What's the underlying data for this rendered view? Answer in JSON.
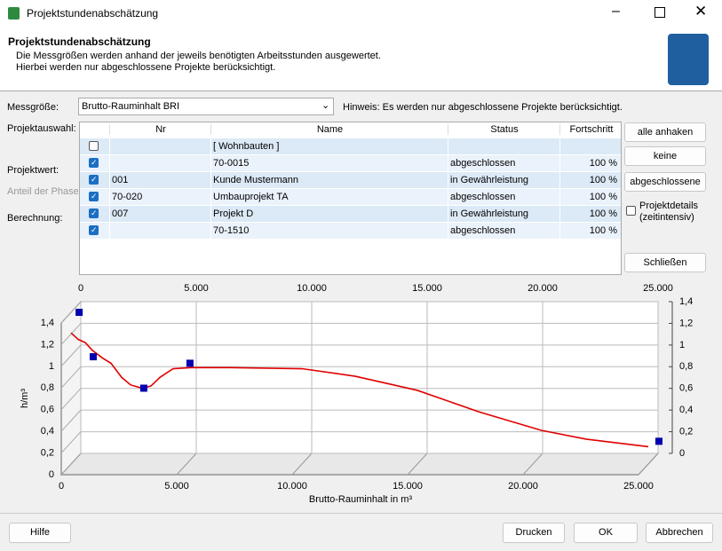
{
  "window": {
    "title": "Projektstundenabschätzung"
  },
  "header": {
    "title": "Projektstundenabschätzung",
    "lines": [
      "Die Messgrößen werden anhand der jeweils benötigten Arbeitsstunden ausgewertet.",
      "Hierbei werden nur abgeschlossene Projekte berücksichtigt."
    ]
  },
  "form": {
    "measure_label": "Messgröße:",
    "measure_value": "Brutto-Rauminhalt BRI",
    "hint": "Hinweis: Es werden nur abgeschlossene Projekte berücksichtigt.",
    "labels": [
      "Projektauswahl:",
      "Projektwert:",
      "Anteil der Phase",
      "Berechnung:"
    ]
  },
  "table": {
    "columns": [
      "Nr",
      "Name",
      "Status",
      "Fortschritt"
    ],
    "rows": [
      {
        "checked": false,
        "cells": [
          null,
          "[ Wohnbauten ]",
          null,
          null
        ]
      },
      {
        "checked": true,
        "cells": [
          null,
          "70-0015",
          "abgeschlossen",
          "100 %"
        ]
      },
      {
        "checked": true,
        "cells": [
          "001",
          "Kunde Mustermann",
          "in Gewährleistung",
          "100 %"
        ]
      },
      {
        "checked": true,
        "cells": [
          "70-020",
          "Umbauprojekt TA",
          "abgeschlossen",
          "100 %"
        ]
      },
      {
        "checked": true,
        "cells": [
          "007",
          "Projekt D",
          "in Gewährleistung",
          "100 %"
        ]
      },
      {
        "checked": true,
        "cells": [
          null,
          "70-1510",
          "abgeschlossen",
          "100 %"
        ]
      }
    ]
  },
  "buttons": {
    "select_all": "alle anhaken",
    "none": "keine",
    "completed": "abgeschlossene",
    "details_lines": [
      "Projektdetails",
      "(zeitintensiv)"
    ],
    "details_checked": false,
    "close": "Schließen"
  },
  "footer": {
    "help": "Hilfe",
    "print": "Drucken",
    "ok": "OK",
    "cancel": "Abbrechen"
  },
  "chart_data": {
    "type": "line",
    "x_label": "Brutto-Rauminhalt in m³",
    "y_label": "h/m³",
    "grid": true,
    "xlim": [
      0,
      25000
    ],
    "xticks": [
      0,
      {
        "value": 5000,
        "label": "5.000"
      },
      {
        "value": 10000,
        "label": "10.000"
      },
      {
        "value": 15000,
        "label": "15.000"
      },
      {
        "value": 20000,
        "label": "20.000"
      },
      {
        "value": 25000,
        "label": "25.000"
      }
    ],
    "ylim": [
      0,
      1.4
    ],
    "yticks": [
      0,
      {
        "value": 0.2,
        "label": "0,2"
      },
      {
        "value": 0.4,
        "label": "0,4"
      },
      {
        "value": 0.6,
        "label": "0,6"
      },
      {
        "value": 0.8,
        "label": "0,8"
      },
      1,
      {
        "value": 1.2,
        "label": "1,2"
      },
      {
        "value": 1.4,
        "label": "1,4"
      }
    ],
    "series": [
      {
        "type": "line",
        "color": "#e00000",
        "x": [
          0,
          310,
          620,
          920,
          1350,
          1730,
          2190,
          2580,
          3080,
          3460,
          3850,
          4420,
          5190,
          6920,
          10000,
          12310,
          15000,
          17690,
          20380,
          22310,
          25000
        ],
        "values": [
          1.21,
          1.15,
          1.12,
          1.05,
          0.98,
          0.93,
          0.8,
          0.73,
          0.7,
          0.72,
          0.8,
          0.88,
          0.89,
          0.89,
          0.88,
          0.81,
          0.68,
          0.48,
          0.31,
          0.23,
          0.16
        ]
      },
      {
        "type": "scatter",
        "color": "#0000b0",
        "x": [
          350,
          960,
          3150,
          5150,
          25460
        ],
        "values": [
          1.4,
          0.99,
          0.7,
          0.93,
          0.21
        ]
      }
    ]
  }
}
